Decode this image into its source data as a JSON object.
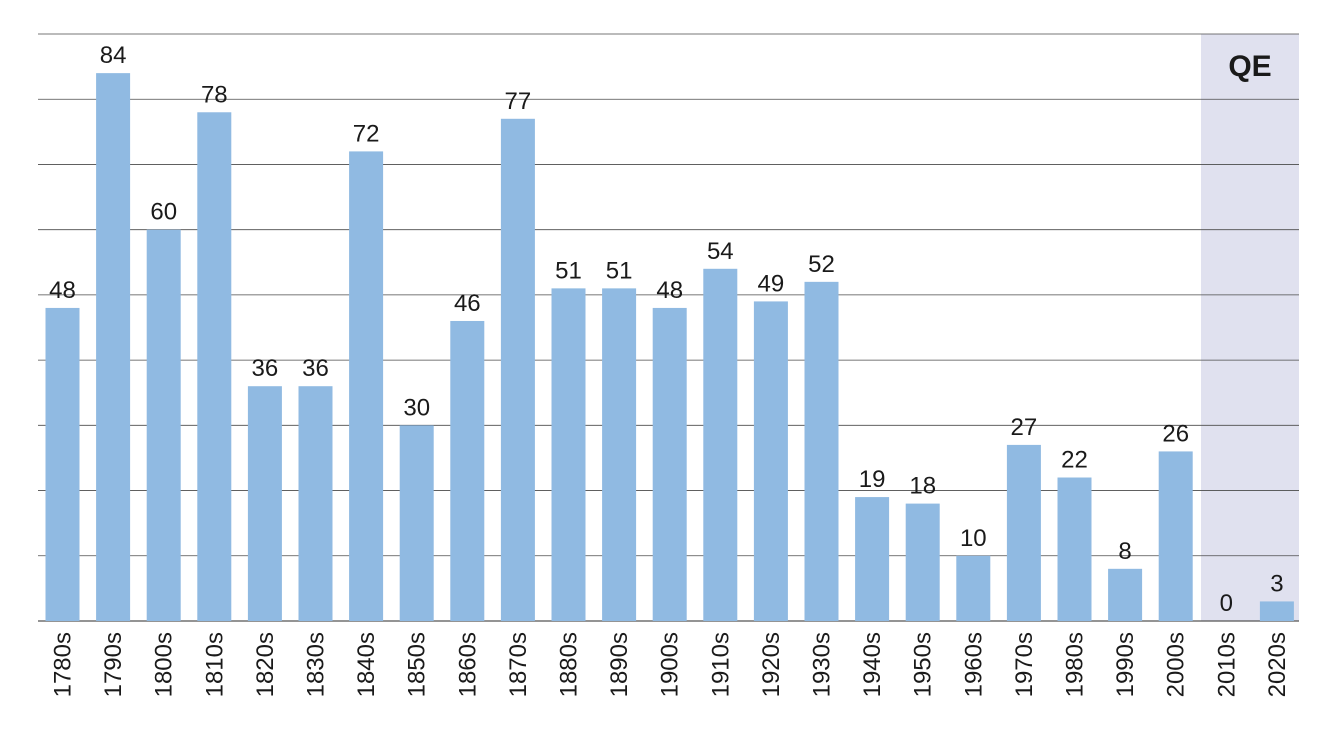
{
  "chart_data": {
    "type": "bar",
    "categories": [
      "1780s",
      "1790s",
      "1800s",
      "1810s",
      "1820s",
      "1830s",
      "1840s",
      "1850s",
      "1860s",
      "1870s",
      "1880s",
      "1890s",
      "1900s",
      "1910s",
      "1920s",
      "1930s",
      "1940s",
      "1950s",
      "1960s",
      "1970s",
      "1980s",
      "1990s",
      "2000s",
      "2010s",
      "2020s"
    ],
    "values": [
      48,
      84,
      60,
      78,
      36,
      36,
      72,
      30,
      46,
      77,
      51,
      51,
      48,
      54,
      49,
      52,
      19,
      18,
      10,
      27,
      22,
      8,
      26,
      0,
      3
    ],
    "title": "",
    "xlabel": "",
    "ylabel": "",
    "ylim": [
      0,
      90
    ],
    "grid": true,
    "gridlines": [
      0,
      10,
      20,
      30,
      40,
      50,
      60,
      70,
      80,
      90
    ],
    "bar_color": "#90bae2",
    "highlight": {
      "label": "QE",
      "categories": [
        "2010s",
        "2020s"
      ],
      "color": "#e0e1ef"
    }
  }
}
